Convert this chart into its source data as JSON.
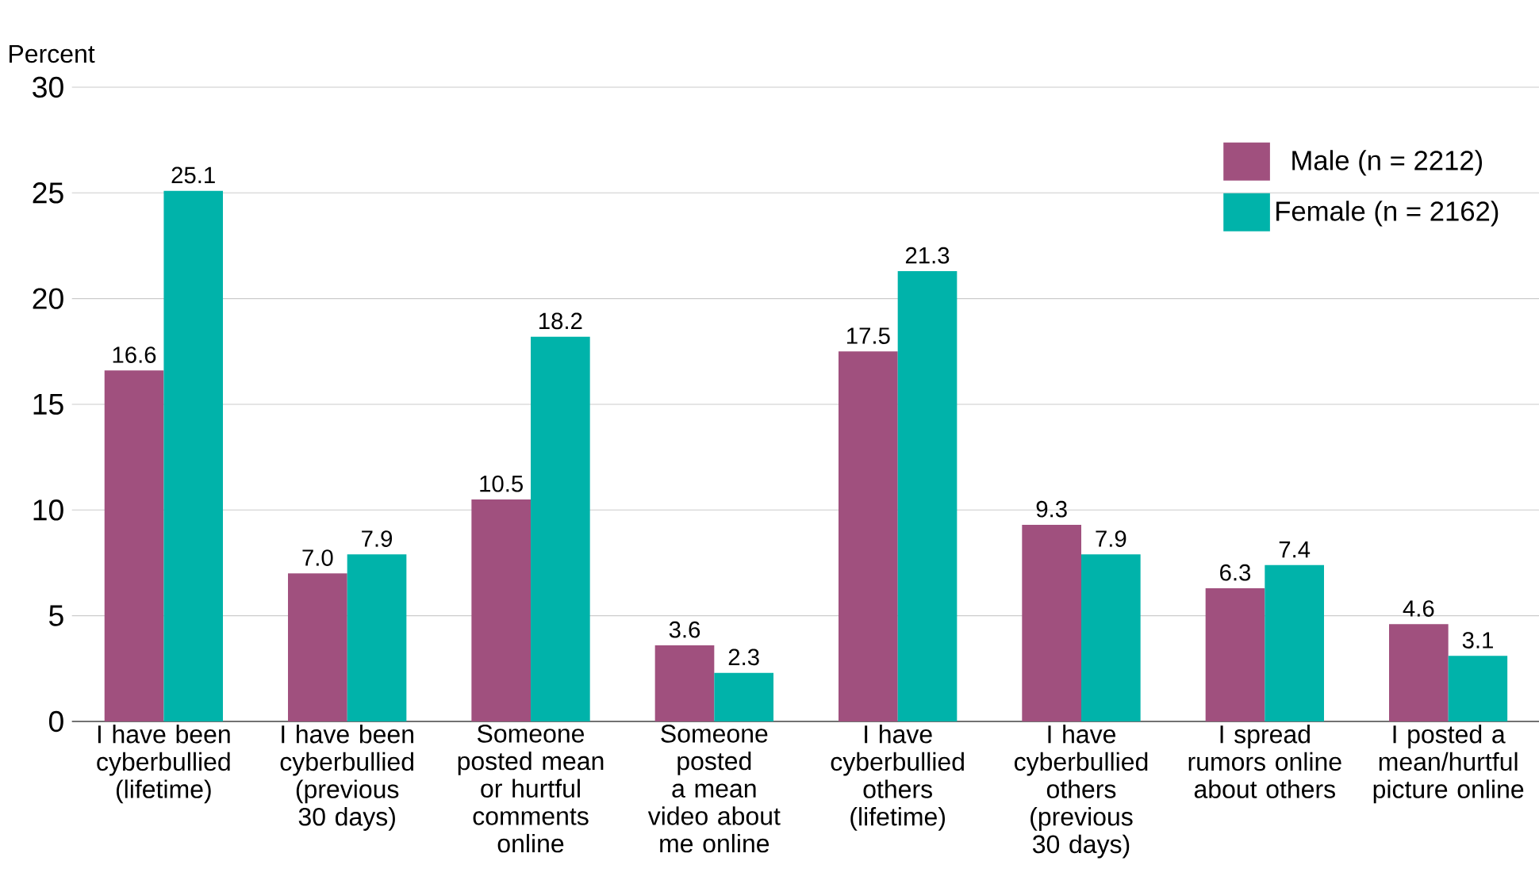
{
  "chart_data": {
    "type": "bar",
    "ylabel": "Percent",
    "categories": [
      "I have been cyberbullied (lifetime)",
      "I have been cyberbullied (previous 30 days)",
      "Someone posted mean or hurtful comments online",
      "Someone posted a mean video about me online",
      "I have cyberbullied others (lifetime)",
      "I have cyberbullied others (previous 30 days)",
      "I spread rumors online about others",
      "I posted a mean/hurtful picture online"
    ],
    "series": [
      {
        "name": "Male (n = 2212)",
        "color": "#a0507e",
        "values": [
          16.6,
          7.0,
          10.5,
          3.6,
          17.5,
          9.3,
          6.3,
          4.6
        ],
        "value_labels": [
          "16.6",
          "7.0",
          "10.5",
          "3.6",
          "17.5",
          "9.3",
          "6.3",
          "4.6"
        ]
      },
      {
        "name": "Female (n = 2162)",
        "color": "#00b3aa",
        "values": [
          25.1,
          7.9,
          18.2,
          2.3,
          21.3,
          7.9,
          7.4,
          3.1
        ],
        "value_labels": [
          "25.1",
          "7.9",
          "18.2",
          "2.3",
          "21.3",
          "7.9",
          "7.4",
          "3.1"
        ]
      }
    ],
    "ylim": [
      0,
      30
    ],
    "yticks": [
      0,
      5,
      10,
      15,
      20,
      25,
      30
    ],
    "grid": "y",
    "legend": "top right"
  }
}
